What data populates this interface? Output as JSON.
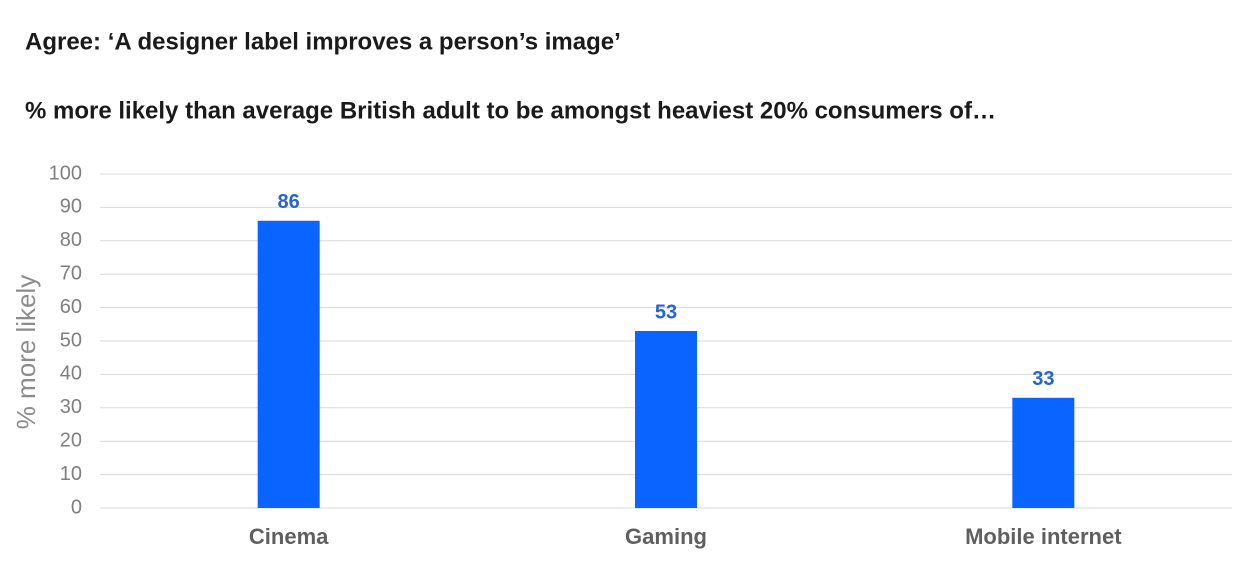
{
  "chart_data": {
    "type": "bar",
    "title": "Agree: ‘A designer label improves a person’s image’",
    "subtitle": "% more likely than average British adult to be amongst heaviest 20% consumers of…",
    "y_label": "% more likely",
    "categories": [
      "Cinema",
      "Gaming",
      "Mobile internet"
    ],
    "values": [
      86,
      53,
      33
    ],
    "color": "#0a64ff",
    "label_color": "#2563d8",
    "ylim": [
      0,
      100
    ],
    "yticks": [
      0,
      10,
      20,
      30,
      40,
      50,
      60,
      70,
      80,
      90,
      100
    ],
    "grid": true
  }
}
